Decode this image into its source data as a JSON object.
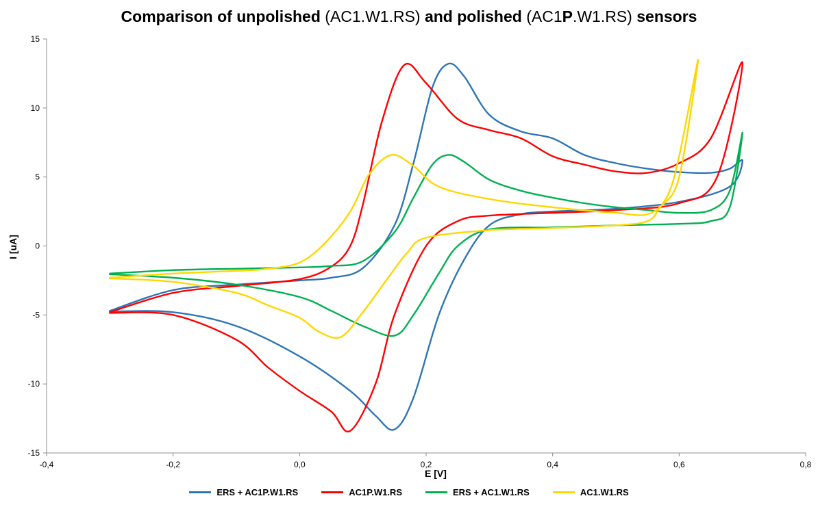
{
  "title": {
    "parts": [
      {
        "text": "Comparison of unpolished ",
        "bold": true
      },
      {
        "text": "(AC1.W1.RS)",
        "bold": false
      },
      {
        "text": " and polished ",
        "bold": true
      },
      {
        "text": "(AC1",
        "bold": false
      },
      {
        "text": "P",
        "bold": true
      },
      {
        "text": ".W1.RS)",
        "bold": false
      },
      {
        "text": " sensors",
        "bold": true
      }
    ]
  },
  "chart_data": {
    "type": "line",
    "title": "Comparison of unpolished (AC1.W1.RS) and polished (AC1P.W1.RS) sensors",
    "xlabel": "E [V]",
    "ylabel": "I [uA]",
    "xlim": [
      -0.4,
      0.8
    ],
    "ylim": [
      -15,
      15
    ],
    "x_ticks": [
      -0.4,
      -0.2,
      0.0,
      0.2,
      0.4,
      0.6,
      0.8
    ],
    "x_tick_labels": [
      "-0,4",
      "-0,2",
      "0,0",
      "0,2",
      "0,4",
      "0,6",
      "0,8"
    ],
    "y_ticks": [
      -15,
      -10,
      -5,
      0,
      5,
      10,
      15
    ],
    "y_tick_labels": [
      "-15",
      "-10",
      "-5",
      "0",
      "5",
      "10",
      "15"
    ],
    "grid": false,
    "legend_position": "bottom",
    "series": [
      {
        "name": "ERS + AC1P.W1.RS",
        "color": "#2E75B6",
        "points": [
          [
            -0.3,
            -4.7
          ],
          [
            -0.2,
            -3.2
          ],
          [
            -0.1,
            -2.8
          ],
          [
            0.0,
            -2.5
          ],
          [
            0.05,
            -2.3
          ],
          [
            0.1,
            -1.6
          ],
          [
            0.15,
            1.5
          ],
          [
            0.18,
            6.0
          ],
          [
            0.21,
            11.5
          ],
          [
            0.235,
            13.2
          ],
          [
            0.26,
            12.3
          ],
          [
            0.3,
            9.5
          ],
          [
            0.35,
            8.3
          ],
          [
            0.4,
            7.8
          ],
          [
            0.45,
            6.6
          ],
          [
            0.5,
            6.0
          ],
          [
            0.55,
            5.6
          ],
          [
            0.6,
            5.35
          ],
          [
            0.65,
            5.3
          ],
          [
            0.68,
            5.6
          ],
          [
            0.7,
            6.2
          ],
          [
            0.68,
            4.3
          ],
          [
            0.6,
            3.2
          ],
          [
            0.5,
            2.7
          ],
          [
            0.4,
            2.5
          ],
          [
            0.35,
            2.3
          ],
          [
            0.3,
            1.5
          ],
          [
            0.26,
            -1.0
          ],
          [
            0.22,
            -5.0
          ],
          [
            0.18,
            -11.0
          ],
          [
            0.15,
            -13.3
          ],
          [
            0.12,
            -12.3
          ],
          [
            0.08,
            -10.5
          ],
          [
            0.0,
            -8.0
          ],
          [
            -0.1,
            -5.8
          ],
          [
            -0.2,
            -4.8
          ],
          [
            -0.3,
            -4.75
          ]
        ]
      },
      {
        "name": "AC1P.W1.RS",
        "color": "#FF0000",
        "points": [
          [
            -0.3,
            -4.8
          ],
          [
            -0.2,
            -3.4
          ],
          [
            -0.1,
            -2.9
          ],
          [
            0.0,
            -2.4
          ],
          [
            0.05,
            -1.5
          ],
          [
            0.08,
            0.0
          ],
          [
            0.1,
            3.0
          ],
          [
            0.13,
            9.0
          ],
          [
            0.165,
            13.1
          ],
          [
            0.2,
            11.8
          ],
          [
            0.25,
            9.2
          ],
          [
            0.3,
            8.4
          ],
          [
            0.35,
            7.8
          ],
          [
            0.4,
            6.5
          ],
          [
            0.45,
            5.9
          ],
          [
            0.5,
            5.4
          ],
          [
            0.55,
            5.3
          ],
          [
            0.6,
            6.0
          ],
          [
            0.65,
            7.8
          ],
          [
            0.7,
            13.3
          ],
          [
            0.66,
            5.0
          ],
          [
            0.6,
            3.1
          ],
          [
            0.5,
            2.6
          ],
          [
            0.4,
            2.4
          ],
          [
            0.3,
            2.2
          ],
          [
            0.25,
            1.8
          ],
          [
            0.2,
            0.0
          ],
          [
            0.15,
            -5.0
          ],
          [
            0.12,
            -10.0
          ],
          [
            0.08,
            -13.4
          ],
          [
            0.05,
            -12.0
          ],
          [
            0.0,
            -10.5
          ],
          [
            -0.05,
            -8.8
          ],
          [
            -0.1,
            -6.8
          ],
          [
            -0.2,
            -5.0
          ],
          [
            -0.3,
            -4.85
          ]
        ]
      },
      {
        "name": "ERS + AC1.W1.RS",
        "color": "#00B050",
        "points": [
          [
            -0.3,
            -2.0
          ],
          [
            -0.2,
            -1.75
          ],
          [
            -0.1,
            -1.65
          ],
          [
            0.0,
            -1.55
          ],
          [
            0.05,
            -1.45
          ],
          [
            0.1,
            -1.1
          ],
          [
            0.15,
            1.0
          ],
          [
            0.18,
            3.5
          ],
          [
            0.21,
            5.9
          ],
          [
            0.235,
            6.6
          ],
          [
            0.26,
            6.1
          ],
          [
            0.3,
            4.8
          ],
          [
            0.35,
            4.0
          ],
          [
            0.4,
            3.5
          ],
          [
            0.45,
            3.1
          ],
          [
            0.5,
            2.8
          ],
          [
            0.55,
            2.6
          ],
          [
            0.6,
            2.4
          ],
          [
            0.65,
            2.6
          ],
          [
            0.68,
            4.0
          ],
          [
            0.7,
            8.2
          ],
          [
            0.68,
            2.8
          ],
          [
            0.65,
            1.8
          ],
          [
            0.6,
            1.6
          ],
          [
            0.5,
            1.5
          ],
          [
            0.4,
            1.35
          ],
          [
            0.3,
            1.2
          ],
          [
            0.25,
            0.0
          ],
          [
            0.22,
            -2.0
          ],
          [
            0.18,
            -5.0
          ],
          [
            0.15,
            -6.5
          ],
          [
            0.1,
            -5.8
          ],
          [
            0.05,
            -4.7
          ],
          [
            0.0,
            -3.7
          ],
          [
            -0.1,
            -2.8
          ],
          [
            -0.2,
            -2.3
          ],
          [
            -0.3,
            -2.05
          ]
        ]
      },
      {
        "name": "AC1.W1.RS",
        "color": "#FFD700",
        "points": [
          [
            -0.3,
            -2.3
          ],
          [
            -0.2,
            -2.0
          ],
          [
            -0.1,
            -1.8
          ],
          [
            -0.05,
            -1.65
          ],
          [
            0.0,
            -1.2
          ],
          [
            0.04,
            0.2
          ],
          [
            0.08,
            2.5
          ],
          [
            0.11,
            5.2
          ],
          [
            0.145,
            6.6
          ],
          [
            0.18,
            5.8
          ],
          [
            0.22,
            4.3
          ],
          [
            0.3,
            3.4
          ],
          [
            0.4,
            2.8
          ],
          [
            0.5,
            2.4
          ],
          [
            0.55,
            2.3
          ],
          [
            0.58,
            3.5
          ],
          [
            0.6,
            6.5
          ],
          [
            0.63,
            13.5
          ],
          [
            0.6,
            5.0
          ],
          [
            0.57,
            2.8
          ],
          [
            0.55,
            1.8
          ],
          [
            0.5,
            1.5
          ],
          [
            0.4,
            1.3
          ],
          [
            0.3,
            1.15
          ],
          [
            0.2,
            0.6
          ],
          [
            0.17,
            -0.5
          ],
          [
            0.14,
            -2.3
          ],
          [
            0.1,
            -4.8
          ],
          [
            0.065,
            -6.6
          ],
          [
            0.03,
            -6.2
          ],
          [
            0.0,
            -5.2
          ],
          [
            -0.05,
            -4.3
          ],
          [
            -0.1,
            -3.4
          ],
          [
            -0.2,
            -2.6
          ],
          [
            -0.3,
            -2.35
          ]
        ]
      }
    ]
  }
}
